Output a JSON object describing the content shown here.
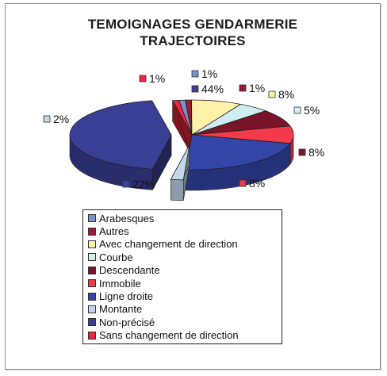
{
  "chart_data": {
    "type": "pie",
    "title_lines": [
      "TEMOIGNAGES GENDARMERIE",
      "TRAJECTOIRES"
    ],
    "categories": [
      "Arabesques",
      "Autres",
      "Avec changement de direction",
      "Courbe",
      "Descendante",
      "Immobile",
      "Ligne droite",
      "Montante",
      "Non-précisé",
      "Sans changement de direction"
    ],
    "values": [
      1,
      1,
      8,
      5,
      8,
      8,
      22,
      2,
      44,
      1
    ],
    "labels": [
      "1%",
      "1%",
      "8%",
      "5%",
      "8%",
      "8%",
      "22%",
      "2%",
      "44%",
      "1%"
    ],
    "exploded": [
      "Non-précisé",
      "Montante"
    ],
    "colors": [
      "#7b8fd0",
      "#9b1c34",
      "#fff2a8",
      "#cfeef2",
      "#7a1428",
      "#f23a4a",
      "#3345a8",
      "#c3d8ec",
      "#3a3f96",
      "#f0243a"
    ],
    "legend_position": "bottom",
    "projection": "3d"
  }
}
